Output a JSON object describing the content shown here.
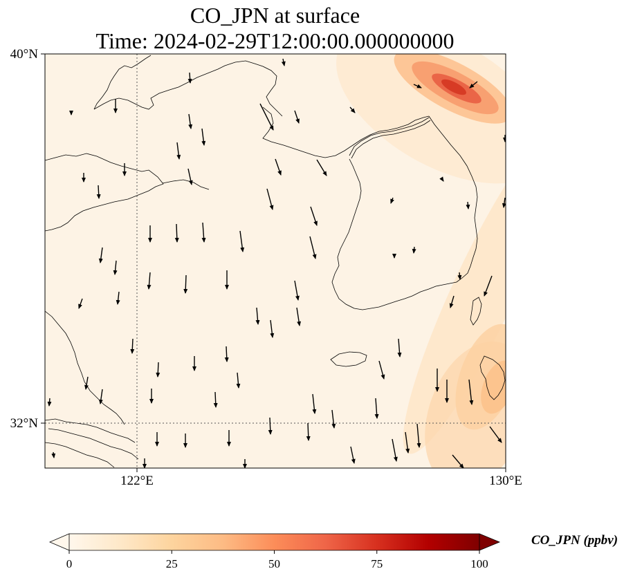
{
  "title_line1": "CO_JPN at surface",
  "title_line2": "Time: 2024-02-29T12:00:00.000000000",
  "map": {
    "lon_range": [
      120,
      130
    ],
    "lat_range": [
      31,
      40
    ],
    "gridlines": {
      "lons": [
        122
      ],
      "lats": [
        32
      ],
      "style": "dotted"
    },
    "lat_labels": [
      {
        "lat": 40,
        "text": "40°N"
      },
      {
        "lat": 32,
        "text": "32°N"
      }
    ],
    "lon_labels": [
      {
        "lon": 122,
        "text": "122°E"
      },
      {
        "lon": 130,
        "text": "130°E"
      }
    ],
    "hotspots": [
      {
        "name": "northeast-plume",
        "lon": 128.8,
        "lat": 39.7,
        "max_value": 70
      },
      {
        "name": "southeast-plume",
        "lon": 129.8,
        "lat": 31.9,
        "max_value": 25
      }
    ]
  },
  "colorbar": {
    "label": "CO_JPN (ppbv)",
    "colormap": "OrRd",
    "colors": [
      "#fff7ec",
      "#fee8c8",
      "#fdd49e",
      "#fdbb84",
      "#fc8d59",
      "#ef6548",
      "#d7301f",
      "#b30000",
      "#7f0000"
    ],
    "ticks": [
      {
        "value": 0,
        "text": "0"
      },
      {
        "value": 25,
        "text": "25"
      },
      {
        "value": 50,
        "text": "50"
      },
      {
        "value": 75,
        "text": "75"
      },
      {
        "value": 100,
        "text": "100"
      }
    ],
    "range": [
      0,
      100
    ],
    "extend": "both"
  }
}
